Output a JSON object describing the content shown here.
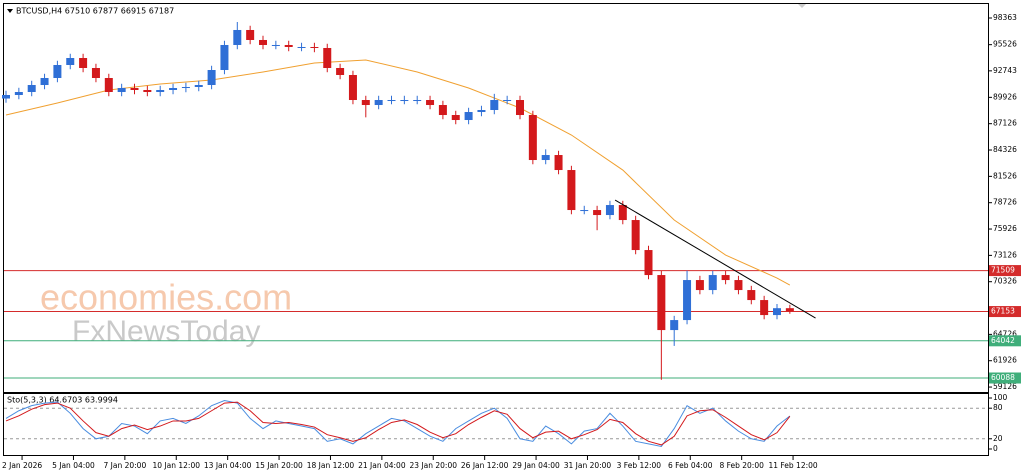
{
  "chart_data": [
    {
      "type": "candlestick",
      "title": "BTCUSD,H4  67510 67877 66915 67187",
      "x": [
        0,
        1,
        2,
        3,
        4,
        5,
        6,
        7,
        8,
        9,
        10,
        11,
        12,
        13,
        14,
        15,
        16,
        17,
        18,
        19,
        20,
        21,
        22,
        23,
        24,
        25,
        26,
        27,
        28,
        29,
        30,
        31,
        32,
        33,
        34,
        35,
        36,
        37,
        38,
        39,
        40,
        41,
        42,
        43,
        44,
        45,
        46,
        47,
        48,
        49,
        50,
        51,
        52,
        53,
        54,
        55,
        56,
        57,
        58,
        59,
        60,
        61
      ],
      "open": [
        89800,
        90175,
        90494,
        91238,
        91983,
        93365,
        94109,
        93046,
        91983,
        90494,
        90919,
        90707,
        90494,
        90707,
        90919,
        91026,
        91238,
        92833,
        95492,
        97087,
        96024,
        95492,
        95492,
        95279,
        95279,
        95173,
        93046,
        92302,
        89643,
        89111,
        89643,
        89643,
        89643,
        89643,
        89111,
        88048,
        87516,
        88367,
        88580,
        89643,
        89643,
        88048,
        83263,
        83794,
        82199,
        77946,
        77946,
        77414,
        78477,
        76882,
        73692,
        71034,
        65185,
        66248,
        70502,
        69439,
        71034,
        70502,
        69439,
        68375,
        66780,
        67510
      ],
      "high": [
        90625,
        90944,
        91688,
        92433,
        93815,
        94559,
        94559,
        93496,
        92433,
        91369,
        91369,
        91157,
        91157,
        91369,
        91476,
        91688,
        93283,
        95942,
        97938,
        97537,
        96474,
        95942,
        95942,
        95729,
        95729,
        95623,
        93496,
        92752,
        90093,
        90093,
        90093,
        90093,
        90093,
        90093,
        89561,
        88498,
        88817,
        89030,
        90300,
        90093,
        90093,
        88498,
        84400,
        84244,
        82649,
        78396,
        78396,
        78927,
        78927,
        77332,
        74142,
        71484,
        66698,
        71500,
        70952,
        71484,
        71484,
        70952,
        69889,
        68825,
        67960,
        67877
      ],
      "low": [
        89350,
        89725,
        90044,
        90788,
        91533,
        92915,
        92596,
        91533,
        90044,
        90044,
        90257,
        90044,
        90044,
        90257,
        90469,
        90576,
        90788,
        92383,
        95042,
        95574,
        95042,
        95042,
        94829,
        94829,
        94723,
        92596,
        91852,
        89193,
        87800,
        88661,
        89193,
        89193,
        89193,
        88661,
        87598,
        87066,
        87066,
        87917,
        88130,
        89193,
        87598,
        82813,
        82813,
        81749,
        77496,
        77496,
        75800,
        76964,
        76432,
        73242,
        70584,
        59900,
        63500,
        65798,
        68989,
        68989,
        70052,
        68989,
        67925,
        66330,
        66330,
        66915
      ],
      "close": [
        90175,
        90494,
        91238,
        91983,
        93365,
        94109,
        93046,
        91983,
        90494,
        90919,
        90707,
        90494,
        90707,
        90919,
        91026,
        91238,
        92833,
        95492,
        97087,
        96024,
        95492,
        95492,
        95279,
        95279,
        95173,
        93046,
        92302,
        89643,
        89111,
        89643,
        89643,
        89643,
        89643,
        89111,
        88048,
        87516,
        88367,
        88580,
        89643,
        89643,
        88048,
        83263,
        83794,
        82199,
        77946,
        77946,
        77414,
        78477,
        76882,
        73692,
        71034,
        65185,
        66248,
        70502,
        69439,
        71034,
        70502,
        69439,
        68375,
        66780,
        67510,
        67187
      ],
      "up_color": "#2f6fd6",
      "down_color": "#d3191c",
      "ma_x": [
        0,
        4,
        8,
        12,
        16,
        20,
        24,
        28,
        32,
        36,
        40,
        44,
        48,
        52,
        56,
        60,
        61
      ],
      "ma_values": [
        88048,
        89324,
        90707,
        91345,
        91770,
        92621,
        93578,
        93897,
        92621,
        90919,
        88792,
        85921,
        82199,
        76882,
        73161,
        70715,
        69970
      ],
      "ma_color": "#f0a030",
      "trendline_x": [
        47.4,
        63
      ],
      "trendline_values": [
        79010,
        66461
      ],
      "trendline_color": "#000000",
      "hlines": [
        {
          "value": 71509,
          "color": "#d42b2b"
        },
        {
          "value": 67153,
          "color": "#d42b2b"
        },
        {
          "value": 64042,
          "color": "#3fae7a"
        },
        {
          "value": 60088,
          "color": "#3fae7a"
        }
      ],
      "xlim": [
        0,
        76
      ],
      "ylim": [
        58600,
        99850
      ],
      "yticks": [
        98363,
        95526,
        92743,
        89926,
        87126,
        84326,
        81526,
        78726,
        75926,
        73126,
        70326,
        64726,
        61926,
        59126
      ],
      "watermark": [
        "economies.com",
        "FxNewsToday"
      ]
    },
    {
      "type": "line",
      "title": "Sto(5,3,3) 64.6703 63.9994",
      "x": [
        0,
        1,
        2,
        3,
        4,
        5,
        6,
        7,
        8,
        9,
        10,
        11,
        12,
        13,
        14,
        15,
        16,
        17,
        18,
        19,
        20,
        21,
        22,
        23,
        24,
        25,
        26,
        27,
        28,
        29,
        30,
        31,
        32,
        33,
        34,
        35,
        36,
        37,
        38,
        39,
        40,
        41,
        42,
        43,
        44,
        45,
        46,
        47,
        48,
        49,
        50,
        51,
        52,
        53,
        54,
        55,
        56,
        57,
        58,
        59,
        60,
        61
      ],
      "series": [
        {
          "color": "#4a8de0",
          "values": [
            60,
            75,
            85,
            90,
            92,
            70,
            40,
            20,
            25,
            50,
            45,
            30,
            55,
            60,
            50,
            65,
            85,
            95,
            90,
            60,
            40,
            55,
            50,
            45,
            40,
            15,
            20,
            10,
            30,
            45,
            60,
            55,
            40,
            25,
            15,
            40,
            55,
            70,
            80,
            60,
            20,
            15,
            45,
            30,
            10,
            35,
            40,
            70,
            45,
            15,
            10,
            5,
            40,
            85,
            70,
            80,
            55,
            35,
            20,
            15,
            45,
            64.6703
          ]
        },
        {
          "color": "#d3191c",
          "values": [
            55,
            65,
            78,
            87,
            90,
            80,
            55,
            32,
            25,
            40,
            47,
            38,
            45,
            55,
            55,
            60,
            75,
            90,
            92,
            75,
            52,
            50,
            52,
            48,
            43,
            28,
            22,
            15,
            22,
            38,
            52,
            57,
            48,
            33,
            22,
            30,
            48,
            62,
            75,
            68,
            40,
            22,
            33,
            35,
            20,
            28,
            38,
            58,
            52,
            30,
            15,
            8,
            25,
            65,
            75,
            77,
            62,
            45,
            28,
            18,
            32,
            63.9994
          ]
        }
      ],
      "levels": [
        20,
        80
      ],
      "xlim": [
        0,
        76
      ],
      "ylim": [
        -11.8,
        109.8
      ],
      "yticks": [
        0,
        20,
        80,
        100
      ],
      "xticks": [
        {
          "value": 1.25,
          "label": "2 Jan 2026"
        },
        {
          "value": 5.25,
          "label": "5 Jan 04:00"
        },
        {
          "value": 9.25,
          "label": "7 Jan 20:00"
        },
        {
          "value": 13.25,
          "label": "10 Jan 12:00"
        },
        {
          "value": 17.25,
          "label": "13 Jan 04:00"
        },
        {
          "value": 21.25,
          "label": "15 Jan 20:00"
        },
        {
          "value": 25.25,
          "label": "18 Jan 12:00"
        },
        {
          "value": 29.25,
          "label": "21 Jan 04:00"
        },
        {
          "value": 33.25,
          "label": "23 Jan 20:00"
        },
        {
          "value": 37.25,
          "label": "26 Jan 12:00"
        },
        {
          "value": 41.25,
          "label": "29 Jan 04:00"
        },
        {
          "value": 45.25,
          "label": "31 Jan 20:00"
        },
        {
          "value": 49.25,
          "label": "3 Feb 12:00"
        },
        {
          "value": 53.25,
          "label": "6 Feb 04:00"
        },
        {
          "value": 57.25,
          "label": "8 Feb 20:00"
        },
        {
          "value": 61.25,
          "label": "11 Feb 12:00"
        }
      ]
    }
  ]
}
